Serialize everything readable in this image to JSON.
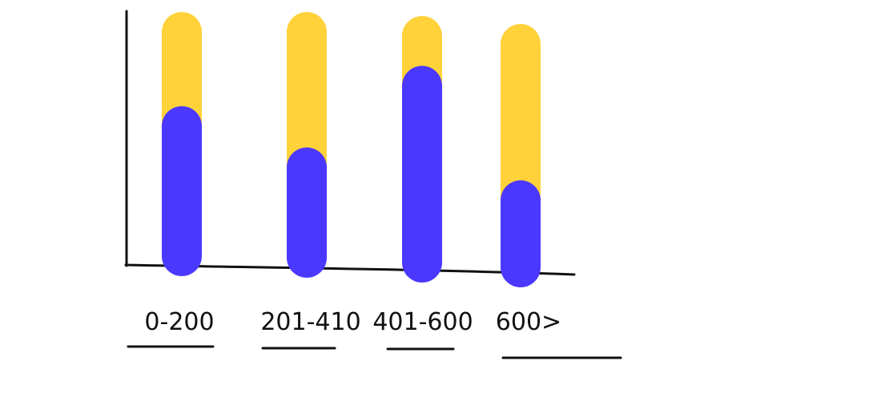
{
  "chart_data": {
    "type": "bar",
    "stacked": true,
    "title": "",
    "xlabel": "",
    "ylabel": "",
    "grid": false,
    "ylim": [
      0,
      100
    ],
    "categories": [
      "0-200",
      "201-410",
      "401-600",
      "600>"
    ],
    "series": [
      {
        "values": [
          58,
          40,
          78,
          30
        ]
      },
      {
        "values": [
          42,
          60,
          22,
          70
        ]
      }
    ],
    "colors": {
      "series": [
        "#4b38ff",
        "#ffd23a"
      ],
      "axis": "#111111",
      "background": "#ffffff"
    }
  }
}
